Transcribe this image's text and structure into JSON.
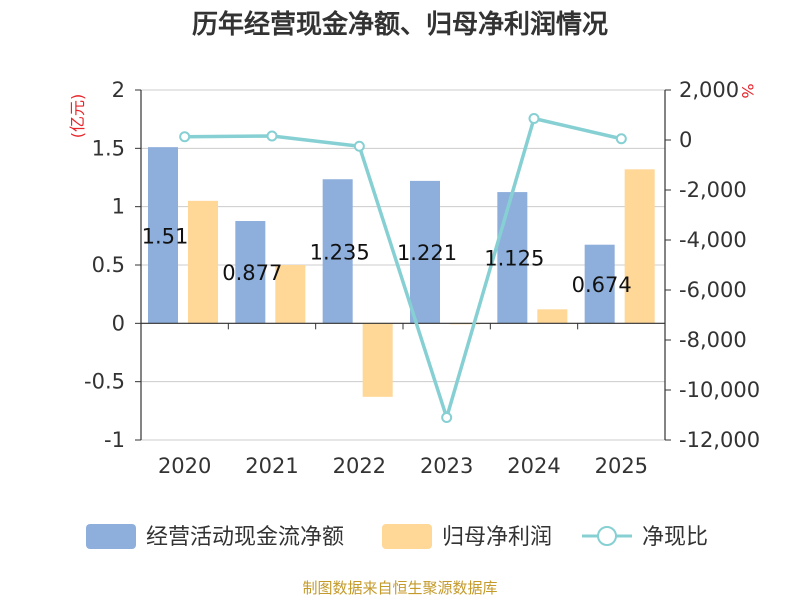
{
  "chart_data": {
    "type": "bar+line",
    "title": "历年经营现金净额、归母净利润情况",
    "categories": [
      "2020",
      "2021",
      "2022",
      "2023",
      "2024",
      "2025"
    ],
    "series": [
      {
        "name": "经营活动现金流净额",
        "type": "bar",
        "axis": "left",
        "color": "#8eaedb",
        "values": [
          1.51,
          0.877,
          1.235,
          1.221,
          1.125,
          0.674
        ],
        "labels": [
          "1.51",
          "0.877",
          "1.235",
          "1.221",
          "1.125",
          "0.674"
        ]
      },
      {
        "name": "归母净利润",
        "type": "bar",
        "axis": "left",
        "color": "#ffd797",
        "values": [
          1.05,
          0.5,
          -0.63,
          0.0,
          0.12,
          1.32
        ]
      },
      {
        "name": "净现比",
        "type": "line",
        "axis": "right",
        "color": "#86d0d4",
        "values": [
          130,
          160,
          -250,
          -11100,
          860,
          50
        ]
      }
    ],
    "y_left": {
      "unit": "(亿元)",
      "min": -1,
      "max": 2,
      "ticks": [
        2,
        1.5,
        1,
        0.5,
        0,
        -0.5,
        -1
      ],
      "tick_labels": [
        "2",
        "1.5",
        "1",
        "0.5",
        "0",
        "-0.5",
        "-1"
      ]
    },
    "y_right": {
      "unit": "%",
      "min": -12000,
      "max": 2000,
      "ticks": [
        2000,
        0,
        -2000,
        -4000,
        -6000,
        -8000,
        -10000,
        -12000
      ],
      "tick_labels": [
        "2,000",
        "0",
        "-2,000",
        "-4,000",
        "-6,000",
        "-8,000",
        "-10,000",
        "-12,000"
      ]
    },
    "grid": true,
    "legend_position": "bottom",
    "source": "制图数据来自恒生聚源数据库"
  }
}
